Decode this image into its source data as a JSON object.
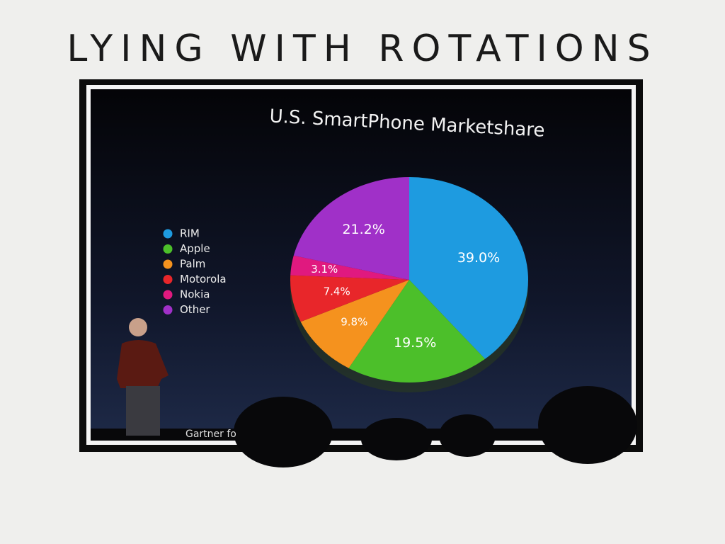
{
  "slide_title": "LYING WITH ROTATIONS",
  "chart_data": {
    "type": "pie",
    "title": "U.S. SmartPhone Marketshare",
    "categories": [
      "RIM",
      "Apple",
      "Palm",
      "Motorola",
      "Nokia",
      "Other"
    ],
    "values": [
      39.0,
      19.5,
      9.8,
      7.4,
      3.1,
      21.2
    ],
    "value_labels": [
      "39.0%",
      "19.5%",
      "9.8%",
      "7.4%",
      "3.1%",
      "21.2%"
    ],
    "colors": [
      "#1e9be0",
      "#4cbf2a",
      "#f5921e",
      "#e8262a",
      "#e0197f",
      "#a030c8"
    ],
    "legend": "left",
    "source": "Gartner fo"
  }
}
